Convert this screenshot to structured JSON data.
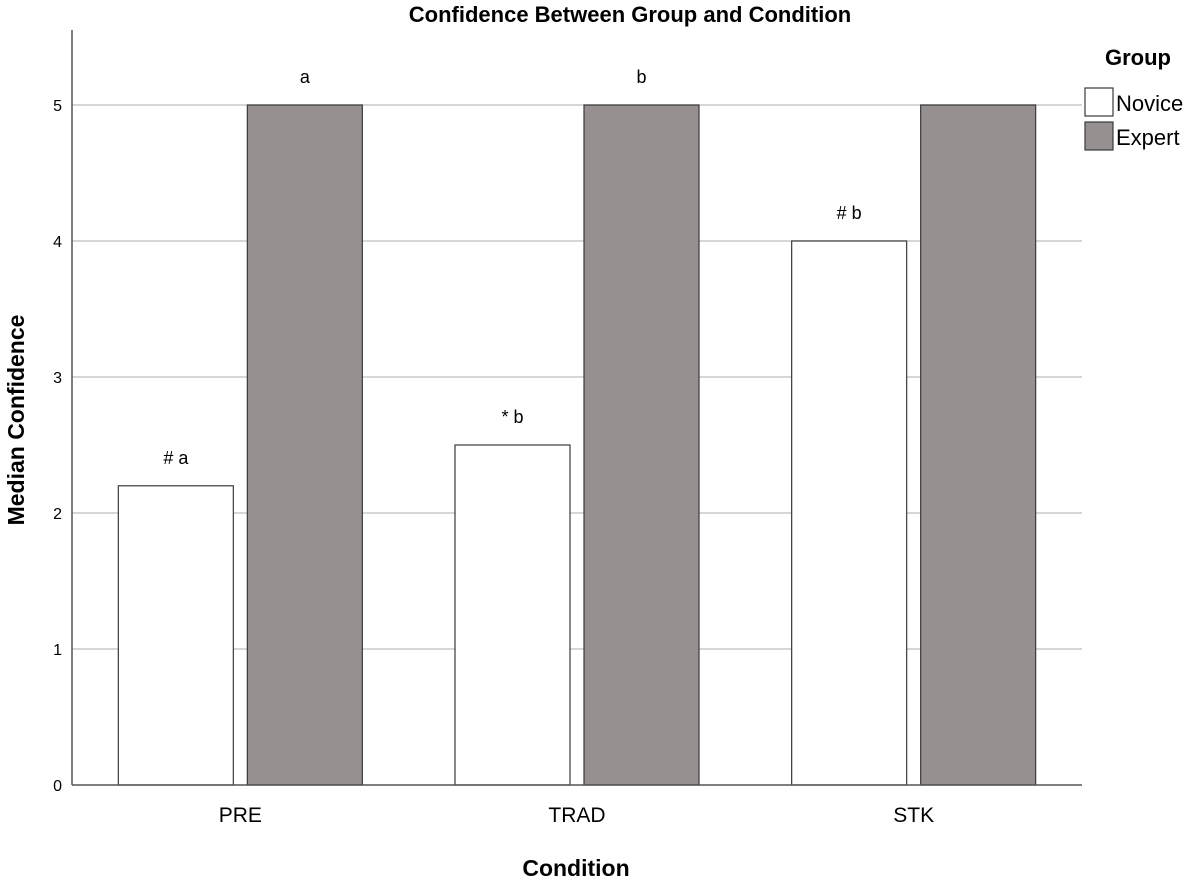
{
  "chart_data": {
    "type": "bar",
    "title": "Confidence Between Group and Condition",
    "xlabel": "Condition",
    "ylabel": "Median Confidence",
    "categories": [
      "PRE",
      "TRAD",
      "STK"
    ],
    "series": [
      {
        "name": "Novice",
        "values": [
          2.2,
          2.5,
          4.0
        ],
        "color": "#ffffff",
        "annotations": [
          "# a",
          "* b",
          "# b"
        ]
      },
      {
        "name": "Expert",
        "values": [
          5,
          5,
          5
        ],
        "color": "#969090",
        "annotations": [
          "a",
          "b",
          ""
        ]
      }
    ],
    "ylim": [
      0,
      5.5
    ],
    "yticks": [
      "0",
      "1",
      "2",
      "3",
      "4",
      "5"
    ],
    "grid": true,
    "legend": {
      "title": "Group",
      "position": "top-right"
    }
  }
}
